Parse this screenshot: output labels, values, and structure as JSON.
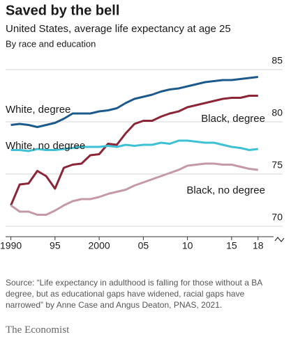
{
  "chart_data": {
    "type": "line",
    "title": "Saved by the bell",
    "subtitle": "United States, average life expectancy at age 25",
    "note": "By race and education",
    "source": "Source: “Life expectancy in adulthood is falling for those without a BA degree, but as educational gaps have widened, racial gaps have narrowed” by Anne Case and Angus Deaton, PNAS, 2021.",
    "publisher": "The Economist",
    "x": [
      1990,
      1991,
      1992,
      1993,
      1994,
      1995,
      1996,
      1997,
      1998,
      1999,
      2000,
      2001,
      2002,
      2003,
      2004,
      2005,
      2006,
      2007,
      2008,
      2009,
      2010,
      2011,
      2012,
      2013,
      2014,
      2015,
      2016,
      2017,
      2018
    ],
    "series": [
      {
        "name": "White, degree",
        "color": "#1d5a8c",
        "values": [
          79.7,
          79.8,
          79.7,
          79.5,
          79.7,
          79.9,
          80.3,
          80.8,
          80.8,
          80.8,
          81.0,
          81.1,
          81.3,
          81.8,
          82.2,
          82.4,
          82.6,
          82.9,
          83.1,
          83.2,
          83.4,
          83.6,
          83.8,
          83.9,
          84.0,
          84.0,
          84.1,
          84.2,
          84.3
        ]
      },
      {
        "name": "Black, degree",
        "color": "#8c2637",
        "values": [
          72.0,
          74.0,
          74.1,
          75.3,
          74.8,
          73.6,
          75.6,
          75.9,
          76.0,
          76.8,
          76.9,
          77.9,
          77.8,
          78.9,
          79.8,
          80.1,
          80.1,
          80.5,
          80.8,
          81.0,
          81.4,
          81.6,
          81.8,
          82.0,
          82.2,
          82.3,
          82.3,
          82.5,
          82.5
        ]
      },
      {
        "name": "White, no degree",
        "color": "#3ec1d3",
        "values": [
          77.3,
          77.3,
          77.2,
          77.4,
          77.3,
          77.3,
          77.4,
          77.5,
          77.6,
          77.6,
          77.6,
          77.7,
          77.6,
          77.8,
          77.7,
          77.8,
          77.8,
          78.0,
          77.9,
          78.2,
          78.2,
          78.1,
          78.0,
          78.0,
          77.8,
          77.6,
          77.5,
          77.3,
          77.4
        ]
      },
      {
        "name": "Black, no degree",
        "color": "#c49aa6",
        "values": [
          72.0,
          71.4,
          71.4,
          71.1,
          71.1,
          71.5,
          72.0,
          72.4,
          72.6,
          72.6,
          72.8,
          73.1,
          73.3,
          73.5,
          73.9,
          74.2,
          74.5,
          74.8,
          75.1,
          75.4,
          75.8,
          75.9,
          76.0,
          76.0,
          75.9,
          75.9,
          75.7,
          75.5,
          75.4
        ]
      }
    ],
    "xlim": [
      1989.4,
      2019.2
    ],
    "xticks": [
      1990,
      {
        "value": 1995,
        "label": "95"
      },
      2000,
      {
        "value": 2005,
        "label": "05"
      },
      {
        "value": 2010,
        "label": "10"
      },
      {
        "value": 2015,
        "label": "15"
      },
      {
        "value": 2018,
        "label": "18"
      }
    ],
    "ylim": [
      69,
      86
    ],
    "yticks": [
      70,
      75,
      80,
      85
    ],
    "grid": true
  }
}
